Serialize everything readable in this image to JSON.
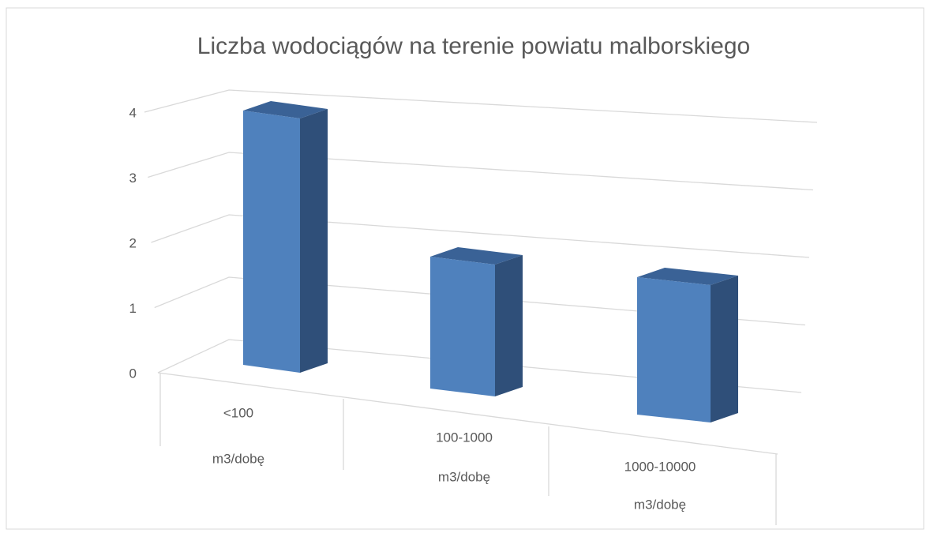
{
  "chart_data": {
    "type": "bar3d",
    "title": "Liczba wodociągów na terenie powiatu malborskiego",
    "categories": [
      [
        "<100",
        "m3/dobę"
      ],
      [
        "100-1000",
        "m3/dobę"
      ],
      [
        "1000-10000",
        "m3/dobę"
      ]
    ],
    "values": [
      4,
      2,
      2
    ],
    "color": "#4f81bd",
    "ylim": [
      0,
      4
    ],
    "yticks": [
      0,
      1,
      2,
      3,
      4
    ],
    "grid": true
  }
}
